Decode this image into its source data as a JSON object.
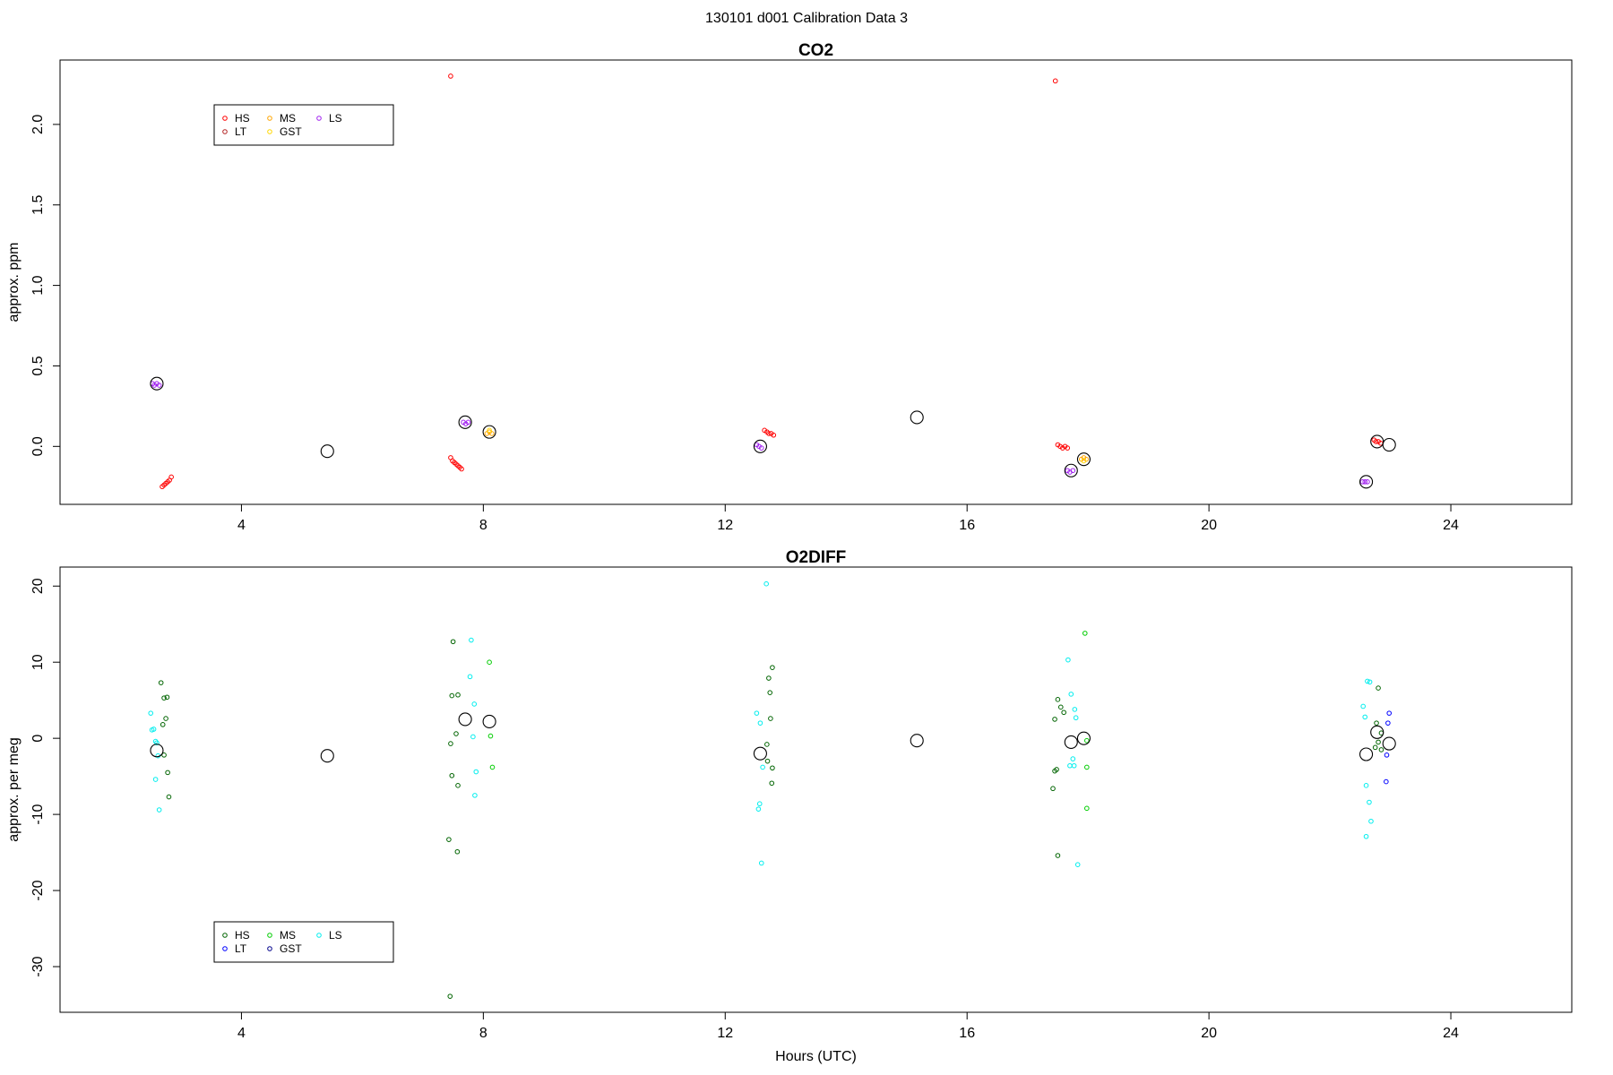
{
  "page_title": "130101   d001   Calibration Data 3",
  "chart_data": [
    {
      "type": "scatter",
      "title": "CO2",
      "xlabel": "",
      "ylabel": "approx. ppm",
      "xlim": [
        1.0,
        26.0
      ],
      "ylim": [
        -0.36,
        2.4
      ],
      "xticks": [
        4,
        8,
        12,
        16,
        20,
        24
      ],
      "xtick_labels": [
        "4",
        "8",
        "12",
        "16",
        "20",
        "24"
      ],
      "yticks": [
        0.0,
        0.5,
        1.0,
        1.5,
        2.0
      ],
      "ytick_labels": [
        "0.0",
        "0.5",
        "1.0",
        "1.5",
        "2.0"
      ],
      "legend_position": "top-left",
      "legend": [
        {
          "name": "HS",
          "color": "#ff0000"
        },
        {
          "name": "MS",
          "color": "#ffa500"
        },
        {
          "name": "LS",
          "color": "#a020f0"
        },
        {
          "name": "LT",
          "color": "#b22222"
        },
        {
          "name": "GST",
          "color": "#ffd700"
        }
      ],
      "series": [
        {
          "name": "HS",
          "color": "#ff0000",
          "points": [
            [
              2.69,
              -0.25
            ],
            [
              2.72,
              -0.24
            ],
            [
              2.75,
              -0.23
            ],
            [
              2.78,
              -0.22
            ],
            [
              2.81,
              -0.21
            ],
            [
              2.84,
              -0.19
            ],
            [
              7.46,
              -0.07
            ],
            [
              7.49,
              -0.09
            ],
            [
              7.52,
              -0.1
            ],
            [
              7.55,
              -0.11
            ],
            [
              7.58,
              -0.12
            ],
            [
              7.61,
              -0.13
            ],
            [
              7.64,
              -0.14
            ],
            [
              7.46,
              2.3
            ],
            [
              12.65,
              0.1
            ],
            [
              12.69,
              0.09
            ],
            [
              12.72,
              0.08
            ],
            [
              12.76,
              0.08
            ],
            [
              12.8,
              0.07
            ],
            [
              17.5,
              0.01
            ],
            [
              17.54,
              0.0
            ],
            [
              17.58,
              -0.01
            ],
            [
              17.62,
              0.0
            ],
            [
              17.66,
              -0.01
            ],
            [
              17.46,
              2.27
            ],
            [
              22.73,
              0.04
            ],
            [
              22.76,
              0.03
            ],
            [
              22.8,
              0.03
            ],
            [
              22.84,
              0.02
            ]
          ]
        },
        {
          "name": "MS",
          "color": "#ffa500",
          "points": [
            [
              8.06,
              0.08
            ],
            [
              8.1,
              0.09
            ],
            [
              8.14,
              0.08
            ],
            [
              17.89,
              -0.08
            ],
            [
              17.93,
              -0.07
            ],
            [
              17.97,
              -0.08
            ]
          ]
        },
        {
          "name": "LS",
          "color": "#a020f0",
          "points": [
            [
              2.53,
              0.39
            ],
            [
              2.56,
              0.38
            ],
            [
              2.6,
              0.39
            ],
            [
              2.64,
              0.38
            ],
            [
              7.67,
              0.15
            ],
            [
              7.71,
              0.14
            ],
            [
              7.75,
              0.15
            ],
            [
              12.52,
              0.01
            ],
            [
              12.56,
              0.0
            ],
            [
              12.6,
              -0.01
            ],
            [
              17.66,
              -0.15
            ],
            [
              17.7,
              -0.16
            ],
            [
              17.75,
              -0.15
            ],
            [
              22.54,
              -0.22
            ],
            [
              22.58,
              -0.22
            ],
            [
              22.62,
              -0.22
            ]
          ]
        },
        {
          "name": "GST",
          "color": "#ffd700",
          "points": [
            [
              8.1,
              0.1
            ],
            [
              17.93,
              -0.09
            ]
          ]
        }
      ],
      "means": [
        [
          2.6,
          0.39
        ],
        [
          5.42,
          -0.03
        ],
        [
          7.7,
          0.15
        ],
        [
          8.1,
          0.09
        ],
        [
          12.58,
          0.0
        ],
        [
          15.17,
          0.18
        ],
        [
          17.72,
          -0.15
        ],
        [
          17.93,
          -0.08
        ],
        [
          22.6,
          -0.22
        ],
        [
          22.78,
          0.03
        ],
        [
          22.98,
          0.01
        ]
      ]
    },
    {
      "type": "scatter",
      "title": "O2DIFF",
      "xlabel": "Hours (UTC)",
      "ylabel": "approx. per meg",
      "xlim": [
        1.0,
        26.0
      ],
      "ylim": [
        -36.0,
        22.5
      ],
      "xticks": [
        4,
        8,
        12,
        16,
        20,
        24
      ],
      "xtick_labels": [
        "4",
        "8",
        "12",
        "16",
        "20",
        "24"
      ],
      "yticks": [
        -30,
        -20,
        -10,
        0,
        10,
        20
      ],
      "ytick_labels": [
        "-30",
        "-20",
        "-10",
        "0",
        "10",
        "20"
      ],
      "legend_position": "bottom-left",
      "legend": [
        {
          "name": "HS",
          "color": "#006400"
        },
        {
          "name": "MS",
          "color": "#00cd00"
        },
        {
          "name": "LS",
          "color": "#00eeee"
        },
        {
          "name": "LT",
          "color": "#0000ff"
        },
        {
          "name": "GST",
          "color": "#00008b"
        }
      ],
      "series": [
        {
          "name": "HS",
          "color": "#006400",
          "points": [
            [
              2.67,
              7.3
            ],
            [
              2.72,
              5.3
            ],
            [
              2.77,
              5.4
            ],
            [
              2.75,
              2.6
            ],
            [
              2.7,
              1.8
            ],
            [
              2.72,
              -2.2
            ],
            [
              2.78,
              -4.5
            ],
            [
              2.8,
              -7.7
            ],
            [
              7.5,
              12.7
            ],
            [
              7.48,
              5.6
            ],
            [
              7.58,
              5.7
            ],
            [
              7.55,
              0.6
            ],
            [
              7.46,
              -0.7
            ],
            [
              7.48,
              -4.9
            ],
            [
              7.58,
              -6.2
            ],
            [
              7.43,
              -13.3
            ],
            [
              7.57,
              -14.9
            ],
            [
              7.45,
              -33.9
            ],
            [
              12.78,
              9.3
            ],
            [
              12.72,
              7.9
            ],
            [
              12.74,
              6.0
            ],
            [
              12.75,
              2.6
            ],
            [
              12.69,
              -0.8
            ],
            [
              12.7,
              -3.0
            ],
            [
              12.78,
              -3.9
            ],
            [
              12.77,
              -5.9
            ],
            [
              17.5,
              5.1
            ],
            [
              17.55,
              4.1
            ],
            [
              17.6,
              3.4
            ],
            [
              17.45,
              2.5
            ],
            [
              17.45,
              -4.3
            ],
            [
              17.48,
              -4.1
            ],
            [
              17.42,
              -6.6
            ],
            [
              17.5,
              -15.4
            ],
            [
              22.8,
              6.6
            ],
            [
              22.77,
              2.0
            ],
            [
              22.85,
              0.7
            ],
            [
              22.8,
              -0.5
            ],
            [
              22.75,
              -1.2
            ],
            [
              22.85,
              -1.5
            ]
          ]
        },
        {
          "name": "MS",
          "color": "#00cd00",
          "points": [
            [
              8.1,
              10.0
            ],
            [
              8.12,
              0.3
            ],
            [
              8.15,
              -3.8
            ],
            [
              17.95,
              13.8
            ],
            [
              17.98,
              -0.3
            ],
            [
              17.98,
              -3.8
            ],
            [
              17.98,
              -9.2
            ]
          ]
        },
        {
          "name": "LS",
          "color": "#00eeee",
          "points": [
            [
              2.5,
              3.3
            ],
            [
              2.52,
              1.1
            ],
            [
              2.55,
              1.2
            ],
            [
              2.58,
              -0.4
            ],
            [
              2.6,
              -0.6
            ],
            [
              2.62,
              -2.3
            ],
            [
              2.58,
              -5.4
            ],
            [
              2.64,
              -9.4
            ],
            [
              7.8,
              12.9
            ],
            [
              7.78,
              8.1
            ],
            [
              7.85,
              4.5
            ],
            [
              7.83,
              0.2
            ],
            [
              7.88,
              -4.4
            ],
            [
              7.86,
              -7.5
            ],
            [
              12.68,
              20.3
            ],
            [
              12.52,
              3.3
            ],
            [
              12.58,
              2.0
            ],
            [
              12.62,
              -3.8
            ],
            [
              12.57,
              -8.6
            ],
            [
              12.55,
              -9.3
            ],
            [
              12.6,
              -16.4
            ],
            [
              17.67,
              10.3
            ],
            [
              17.72,
              5.8
            ],
            [
              17.78,
              3.8
            ],
            [
              17.8,
              2.7
            ],
            [
              17.75,
              -2.7
            ],
            [
              17.7,
              -3.6
            ],
            [
              17.77,
              -3.6
            ],
            [
              17.83,
              -16.6
            ],
            [
              22.62,
              7.5
            ],
            [
              22.66,
              7.4
            ],
            [
              22.55,
              4.2
            ],
            [
              22.58,
              2.8
            ],
            [
              22.6,
              -6.2
            ],
            [
              22.65,
              -8.4
            ],
            [
              22.68,
              -10.9
            ],
            [
              22.6,
              -12.9
            ]
          ]
        },
        {
          "name": "LT",
          "color": "#0000ff",
          "points": [
            [
              22.98,
              3.3
            ],
            [
              22.96,
              2.0
            ],
            [
              22.94,
              -2.2
            ],
            [
              22.93,
              -5.7
            ]
          ]
        }
      ],
      "means": [
        [
          2.6,
          -1.6
        ],
        [
          5.42,
          -2.3
        ],
        [
          7.7,
          2.5
        ],
        [
          8.1,
          2.2
        ],
        [
          12.58,
          -2.0
        ],
        [
          15.17,
          -0.3
        ],
        [
          17.72,
          -0.5
        ],
        [
          17.93,
          0.0
        ],
        [
          22.6,
          -2.1
        ],
        [
          22.78,
          0.8
        ],
        [
          22.98,
          -0.7
        ]
      ]
    }
  ]
}
